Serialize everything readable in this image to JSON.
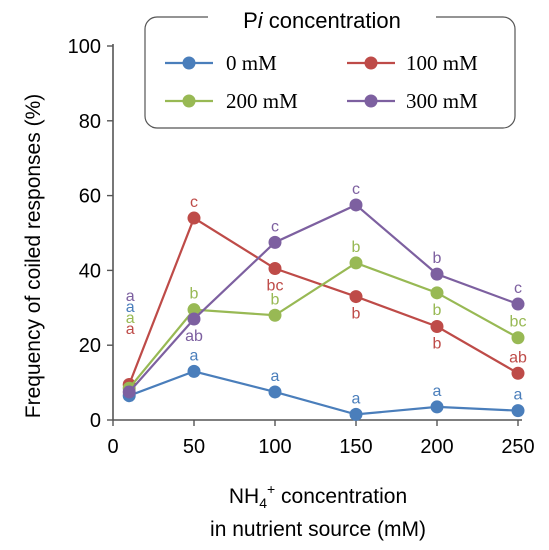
{
  "chart_data": {
    "type": "line",
    "xlabel_line1_pre": "NH",
    "xlabel_line1_sub": "4",
    "xlabel_line1_sup": "+",
    "xlabel_line1_post": " concentration",
    "xlabel_line2": "in  nutrient source (mM)",
    "ylabel": "Frequency of coiled responses (%)",
    "xlim": [
      0,
      250
    ],
    "ylim": [
      0,
      100
    ],
    "x_ticks": [
      0,
      50,
      100,
      150,
      200,
      250
    ],
    "y_ticks": [
      0,
      20,
      40,
      60,
      80,
      100
    ],
    "legend": {
      "title_prefix": "P",
      "title_italic": "i",
      "title_suffix": " concentration",
      "placement": "top-right"
    },
    "x": [
      10,
      50,
      100,
      150,
      200,
      250
    ],
    "series": [
      {
        "name": "0 mM",
        "color": "#4a7ebb",
        "values": [
          6.5,
          13,
          7.5,
          1.5,
          3.5,
          2.5
        ],
        "labels": [
          "a",
          "a",
          "a",
          "a",
          "a",
          "a"
        ],
        "label_pos": [
          "above",
          "above",
          "above",
          "above",
          "above",
          "above"
        ]
      },
      {
        "name": "100 mM",
        "color": "#be4b48",
        "values": [
          9.5,
          54,
          40.5,
          33,
          25,
          12.5
        ],
        "labels": [
          "a",
          "c",
          "bc",
          "b",
          "b",
          "ab"
        ],
        "label_pos": [
          "above",
          "above",
          "below",
          "below",
          "below",
          "above"
        ]
      },
      {
        "name": "200 mM",
        "color": "#98b954",
        "values": [
          8.5,
          29.5,
          28,
          42,
          34,
          22
        ],
        "labels": [
          "a",
          "b",
          "b",
          "b",
          "b",
          "bc"
        ],
        "label_pos": [
          "above",
          "above",
          "above",
          "above",
          "below",
          "above"
        ]
      },
      {
        "name": "300 mM",
        "color": "#7d60a0",
        "values": [
          7.5,
          27,
          47.5,
          57.5,
          39,
          31
        ],
        "labels": [
          "a",
          "ab",
          "c",
          "c",
          "b",
          "c"
        ],
        "label_pos": [
          "above",
          "below",
          "above",
          "above",
          "above",
          "above"
        ]
      }
    ]
  }
}
